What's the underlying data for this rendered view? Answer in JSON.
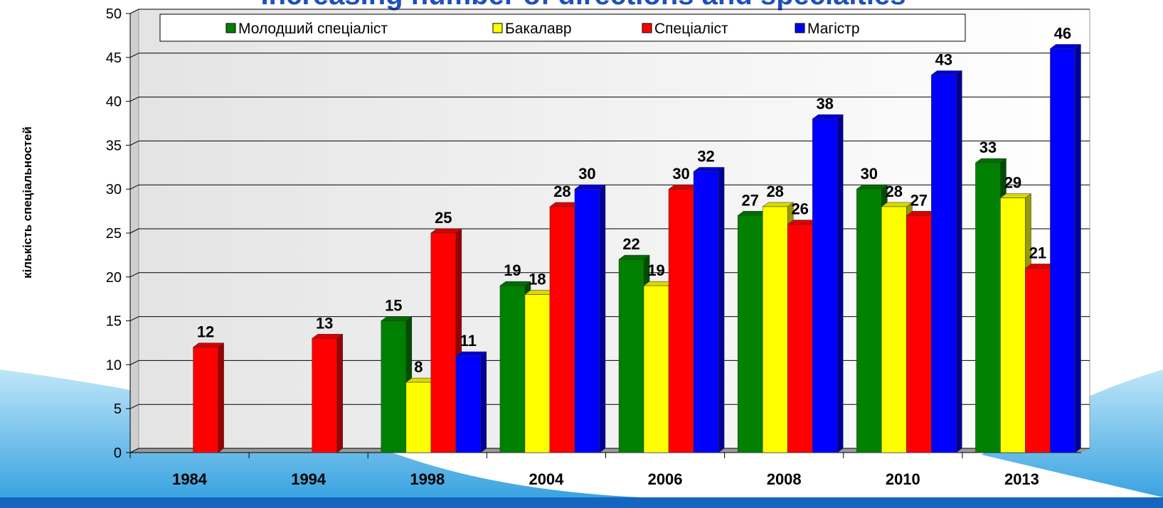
{
  "chart_data": {
    "type": "bar3d",
    "title": "Increasing number of directions and specialties",
    "y_label": "кількість спеціальностей",
    "categories": [
      "1984",
      "1994",
      "1998",
      "2004",
      "2006",
      "2008",
      "2010",
      "2013"
    ],
    "series": [
      {
        "name": "Молодший  спеціаліст",
        "color": "#008000",
        "values": [
          null,
          null,
          15,
          19,
          22,
          27,
          30,
          33
        ]
      },
      {
        "name": "Бакалавр",
        "color": "#ffff00",
        "values": [
          null,
          null,
          8,
          18,
          19,
          28,
          28,
          29
        ]
      },
      {
        "name": "Спеціаліст",
        "color": "#ff0000",
        "values": [
          12,
          13,
          25,
          28,
          30,
          26,
          27,
          21
        ]
      },
      {
        "name": "Магістр",
        "color": "#0000ff",
        "values": [
          null,
          null,
          11,
          30,
          32,
          38,
          43,
          46
        ]
      }
    ],
    "ylim": [
      0,
      50
    ],
    "yticks": [
      0,
      5,
      10,
      15,
      20,
      25,
      30,
      35,
      40,
      45,
      50
    ],
    "grid": true,
    "legend": "top"
  }
}
